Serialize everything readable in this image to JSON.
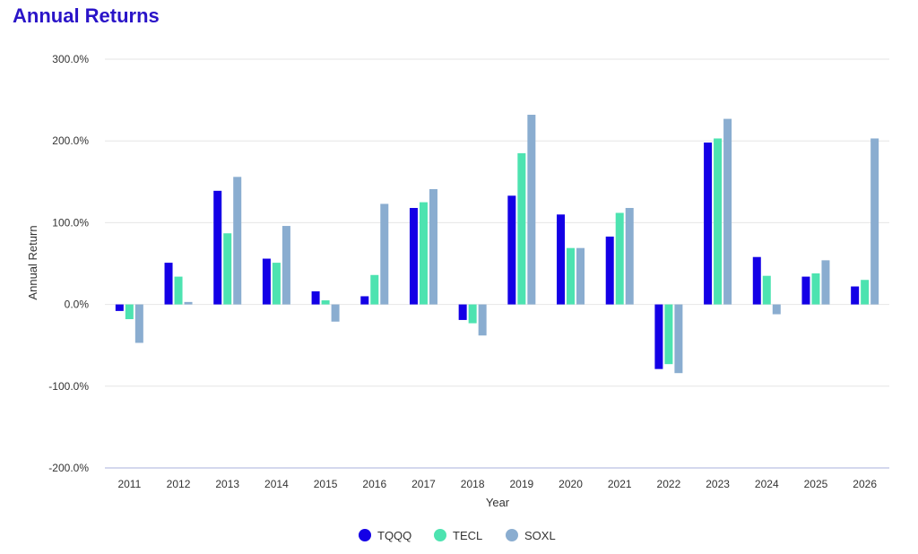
{
  "title": "Annual Returns",
  "title_color": "#2a14c8",
  "chart_data": {
    "type": "bar",
    "title": "Annual Returns",
    "xlabel": "Year",
    "ylabel": "Annual Return",
    "ylim": [
      -200,
      300
    ],
    "yticks": [
      300,
      200,
      100,
      0,
      -100,
      -200
    ],
    "ytick_labels": [
      "300.0%",
      "200.0%",
      "100.0%",
      "0.0%",
      "-100.0%",
      "-200.0%"
    ],
    "grid": true,
    "legend_position": "bottom-center",
    "categories": [
      "2011",
      "2012",
      "2013",
      "2014",
      "2015",
      "2016",
      "2017",
      "2018",
      "2019",
      "2020",
      "2021",
      "2022",
      "2023",
      "2024",
      "2025",
      "2026"
    ],
    "series": [
      {
        "name": "TQQQ",
        "color": "#1400e6",
        "values": [
          -8,
          51,
          139,
          56,
          16,
          10,
          118,
          -19,
          133,
          110,
          83,
          -79,
          198,
          58,
          34,
          22
        ]
      },
      {
        "name": "TECL",
        "color": "#4de3b0",
        "values": [
          -18,
          34,
          87,
          51,
          5,
          36,
          125,
          -23,
          185,
          69,
          112,
          -73,
          203,
          35,
          38,
          30
        ]
      },
      {
        "name": "SOXL",
        "color": "#8aadd0",
        "values": [
          -47,
          3,
          156,
          96,
          -21,
          123,
          141,
          -38,
          232,
          69,
          118,
          -84,
          227,
          -12,
          54,
          203
        ]
      }
    ]
  }
}
